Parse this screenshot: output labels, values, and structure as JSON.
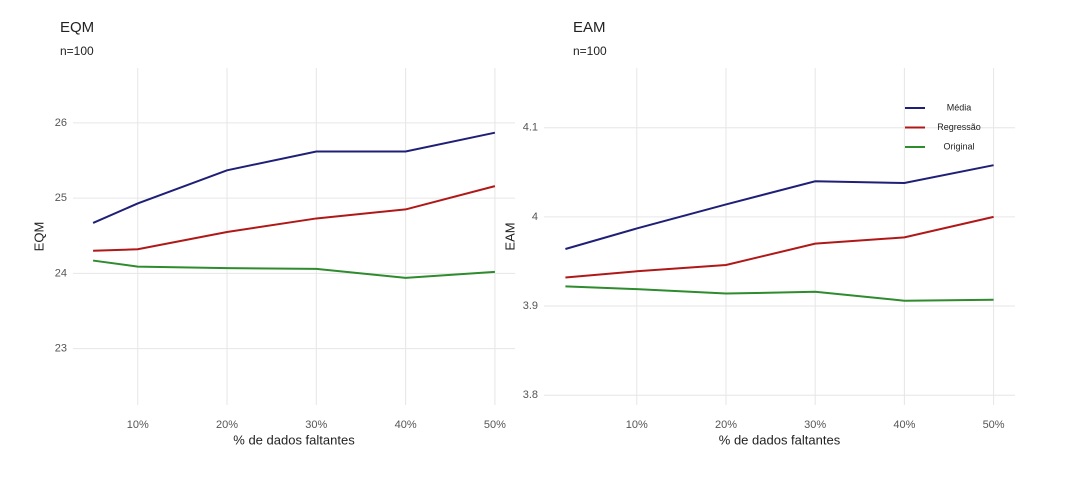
{
  "chart_data": [
    {
      "type": "line",
      "title": "EQM",
      "subtitle": "n=100",
      "x_label": "% de dados faltantes",
      "y_label": "EQM",
      "x": [
        5,
        10,
        20,
        30,
        40,
        50
      ],
      "series": [
        {
          "color": "#1f1f78",
          "values": [
            24.67,
            24.93,
            25.37,
            25.62,
            25.62,
            25.87
          ]
        },
        {
          "color": "#b01818",
          "values": [
            24.3,
            24.32,
            24.55,
            24.73,
            24.85,
            25.16
          ]
        },
        {
          "color": "#2e8b2e",
          "values": [
            24.17,
            24.09,
            24.07,
            24.06,
            23.94,
            24.02
          ]
        }
      ],
      "xlim": [
        2.75,
        52.25
      ],
      "ylim": [
        22.25,
        26.73
      ],
      "xticks": [
        {
          "value": 10,
          "label": "10%"
        },
        {
          "value": 20,
          "label": "20%"
        },
        {
          "value": 30,
          "label": "30%"
        },
        {
          "value": 40,
          "label": "40%"
        },
        {
          "value": 50,
          "label": "50%"
        }
      ],
      "yticks": [
        23,
        24,
        25,
        26
      ],
      "grid": true
    },
    {
      "type": "line",
      "title": "EAM",
      "subtitle": "n=100",
      "x_label": "% de dados faltantes",
      "y_label": "EAM",
      "x": [
        2,
        10,
        20,
        30,
        40,
        50
      ],
      "series": [
        {
          "name": "Média",
          "color": "#1f1f78",
          "values": [
            3.964,
            3.987,
            4.014,
            4.04,
            4.038,
            4.058
          ]
        },
        {
          "name": "Regressão",
          "color": "#b01818",
          "values": [
            3.932,
            3.939,
            3.946,
            3.97,
            3.977,
            4.0
          ]
        },
        {
          "name": "Original",
          "color": "#2e8b2e",
          "values": [
            3.922,
            3.919,
            3.914,
            3.916,
            3.906,
            3.907
          ]
        }
      ],
      "xlim": [
        -0.4,
        52.4
      ],
      "ylim": [
        3.789,
        4.167
      ],
      "xticks": [
        {
          "value": 10,
          "label": "10%"
        },
        {
          "value": 20,
          "label": "20%"
        },
        {
          "value": 30,
          "label": "30%"
        },
        {
          "value": 40,
          "label": "40%"
        },
        {
          "value": 50,
          "label": "50%"
        }
      ],
      "yticks": [
        3.8,
        3.9,
        4.0,
        4.1
      ],
      "grid": true,
      "legend": "top right"
    }
  ]
}
